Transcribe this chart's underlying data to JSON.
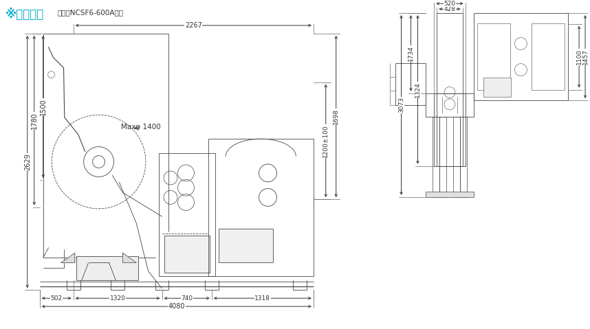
{
  "title_main": "※外形尺寸",
  "title_sub": "以常用NCSF6-600A展示",
  "title_color_main": "#00aacc",
  "title_color_sub": "#333333",
  "bg_color": "#ffffff",
  "dim_color": "#333333",
  "line_color": "#444444",
  "dim_text_size": 7.0,
  "title_main_size": 12,
  "title_sub_size": 7.5,
  "dims_left": {
    "2267": "2267",
    "2629": "2629",
    "1780": "1780",
    "1500": "1500",
    "502": "502",
    "1320": "1320",
    "740": "740",
    "1318": "1318",
    "4080": "4080",
    "maxd": "Maxφ 1400",
    "1200": "1200±100",
    "1698": "1698"
  },
  "dims_right": {
    "428": "428",
    "520": "520",
    "3073": "3073",
    "1734": "1734",
    "1324": "1324",
    "1100": "1100",
    "1457": "1457"
  },
  "lw_machine": 0.6,
  "lw_dim": 0.7
}
